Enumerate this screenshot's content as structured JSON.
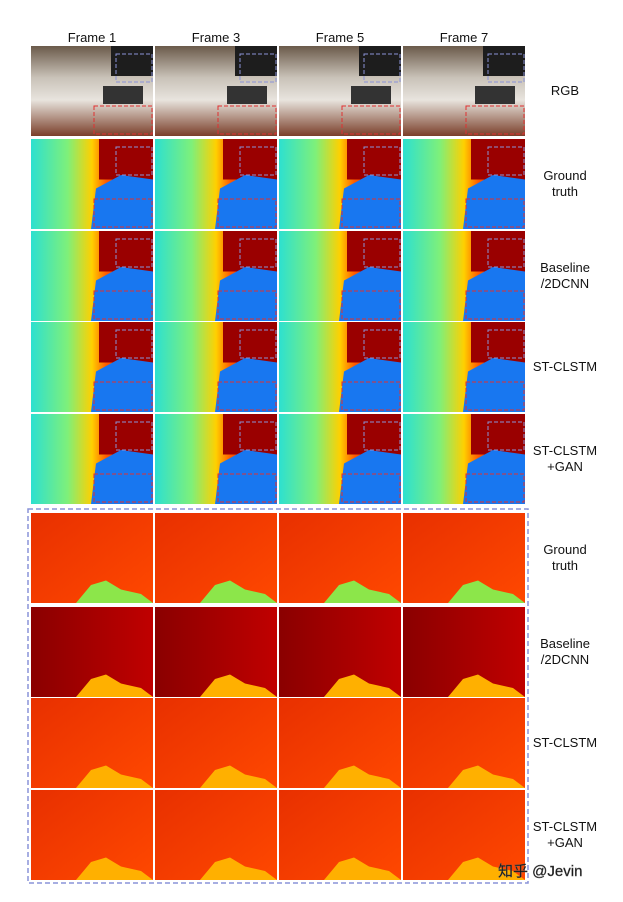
{
  "columns": [
    "Frame 1",
    "Frame 3",
    "Frame 5",
    "Frame 7"
  ],
  "rows": [
    {
      "lines": [
        "RGB"
      ]
    },
    {
      "lines": [
        "Ground",
        "truth"
      ]
    },
    {
      "lines": [
        "Baseline",
        "/2DCNN"
      ]
    },
    {
      "lines": [
        "ST-CLSTM"
      ]
    },
    {
      "lines": [
        "ST-CLSTM",
        "+GAN"
      ]
    }
  ],
  "zoom_rows": [
    {
      "lines": [
        "Ground",
        "truth"
      ]
    },
    {
      "lines": [
        "Baseline",
        "/2DCNN"
      ]
    },
    {
      "lines": [
        "ST-CLSTM"
      ]
    },
    {
      "lines": [
        "ST-CLSTM",
        "+GAN"
      ]
    }
  ],
  "watermark": "知乎 @Jevin"
}
